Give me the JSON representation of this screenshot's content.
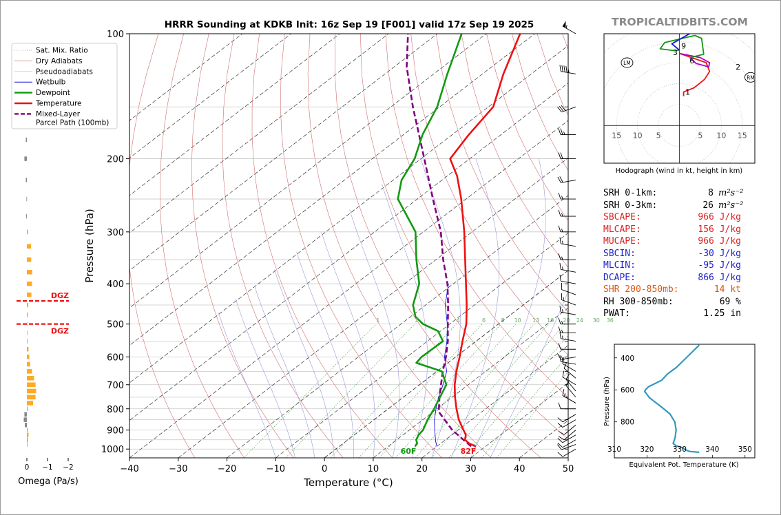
{
  "title": "HRRR Sounding at KDKB Init: 16z Sep 19 [F001] valid 17z Sep 19 2025",
  "brand": "TROPICALTIDBITS.COM",
  "colors": {
    "temperature": "#ee1111",
    "dewpoint": "#119911",
    "wetbulb": "#1111dd",
    "parcel": "#800080",
    "dry_adiabat": "#d07070",
    "pseudoadiabat": "#9a9ad8",
    "mixing": "#66aa66",
    "hodo_low": "#ee1111",
    "hodo_mid": "#aa00cc",
    "hodo_upper": "#119911",
    "hodo_top": "#1111dd",
    "theta_e": "#3399bb",
    "omega_up": "#ffaa22",
    "omega_down": "#888888",
    "dgz": "#ee1111"
  },
  "legend": [
    {
      "key": "satmix",
      "label": "Sat. Mix. Ratio"
    },
    {
      "key": "dry",
      "label": "Dry Adiabats"
    },
    {
      "key": "pseudo",
      "label": "Pseudoadiabats"
    },
    {
      "key": "wetbulb",
      "label": "Wetbulb"
    },
    {
      "key": "dewpoint",
      "label": "Dewpoint"
    },
    {
      "key": "temperature",
      "label": "Temperature"
    },
    {
      "key": "parcel",
      "label": "Mixed-Layer",
      "label2": "Parcel Path (100mb)"
    }
  ],
  "chart_data": [
    {
      "id": "skewt",
      "type": "line",
      "title": "HRRR Sounding at KDKB Init: 16z Sep 19 [F001] valid 17z Sep 19 2025",
      "xlabel": "Temperature (°C)",
      "ylabel": "Pressure (hPa)",
      "xlim": [
        -40,
        50
      ],
      "ylim": [
        1050,
        100
      ],
      "x_ticks": [
        -40,
        -30,
        -20,
        -10,
        0,
        10,
        20,
        30,
        40,
        50
      ],
      "x_tick_labels": [
        "−40",
        "−30",
        "−20",
        "−10",
        "0",
        "10",
        "20",
        "30",
        "40",
        "50"
      ],
      "y_ticks": [
        100,
        200,
        300,
        400,
        500,
        600,
        700,
        800,
        900,
        1000
      ],
      "y_tick_labels": [
        "100",
        "200",
        "300",
        "400",
        "500",
        "600",
        "700",
        "800",
        "900",
        "1000"
      ],
      "mixing_ratio_labels": [
        "1",
        "2",
        "4",
        "6",
        "8",
        "10",
        "13",
        "16",
        "20",
        "24",
        "30",
        "36"
      ],
      "mixing_ratios": [
        1,
        2,
        4,
        6,
        8,
        10,
        13,
        16,
        20,
        24,
        30,
        36
      ],
      "surface_temp_label": "82F",
      "surface_dewpoint_label": "60F",
      "series": [
        {
          "name": "Temperature",
          "points": [
            [
              985,
              28.0
            ],
            [
              970,
              25.9
            ],
            [
              950,
              24.0
            ],
            [
              925,
              22.9
            ],
            [
              900,
              21.1
            ],
            [
              850,
              17.4
            ],
            [
              800,
              14.0
            ],
            [
              750,
              10.6
            ],
            [
              700,
              7.2
            ],
            [
              650,
              4.0
            ],
            [
              600,
              0.8
            ],
            [
              550,
              -2.8
            ],
            [
              500,
              -6.6
            ],
            [
              450,
              -11.6
            ],
            [
              400,
              -17.4
            ],
            [
              350,
              -24.0
            ],
            [
              300,
              -31.6
            ],
            [
              250,
              -41.0
            ],
            [
              220,
              -48.0
            ],
            [
              200,
              -54.0
            ],
            [
              175,
              -56.6
            ],
            [
              150,
              -59.0
            ],
            [
              125,
              -65.7
            ],
            [
              100,
              -73.0
            ]
          ]
        },
        {
          "name": "Dewpoint",
          "points": [
            [
              985,
              15.5
            ],
            [
              970,
              15.2
            ],
            [
              950,
              14.0
            ],
            [
              925,
              13.2
            ],
            [
              900,
              12.8
            ],
            [
              850,
              11.0
            ],
            [
              800,
              9.4
            ],
            [
              750,
              7.5
            ],
            [
              700,
              5.5
            ],
            [
              650,
              1.0
            ],
            [
              620,
              -6.5
            ],
            [
              600,
              -7.0
            ],
            [
              550,
              -6.8
            ],
            [
              520,
              -10.5
            ],
            [
              500,
              -15.5
            ],
            [
              480,
              -19.0
            ],
            [
              450,
              -22.6
            ],
            [
              400,
              -27.0
            ],
            [
              350,
              -34.0
            ],
            [
              300,
              -41.6
            ],
            [
              250,
              -54.0
            ],
            [
              225,
              -58.3
            ],
            [
              200,
              -61.3
            ],
            [
              175,
              -66.1
            ],
            [
              150,
              -70.5
            ],
            [
              125,
              -77.2
            ],
            [
              100,
              -85.0
            ]
          ]
        },
        {
          "name": "Wetbulb",
          "points": [
            [
              985,
              20.0
            ],
            [
              960,
              18.5
            ],
            [
              925,
              16.6
            ],
            [
              900,
              15.2
            ],
            [
              850,
              12.4
            ],
            [
              800,
              9.8
            ],
            [
              750,
              7.2
            ],
            [
              700,
              4.8
            ],
            [
              650,
              2.0
            ],
            [
              600,
              -2.3
            ],
            [
              550,
              -6.0
            ],
            [
              500,
              -10.5
            ],
            [
              450,
              -16.0
            ],
            [
              400,
              -21.0
            ]
          ]
        },
        {
          "name": "Mixed-Layer Parcel Path (100mb)",
          "points": [
            [
              985,
              27.0
            ],
            [
              900,
              18.8
            ],
            [
              815,
              11.3
            ],
            [
              800,
              10.4
            ],
            [
              750,
              7.4
            ],
            [
              700,
              4.4
            ],
            [
              650,
              1.2
            ],
            [
              600,
              -2.0
            ],
            [
              550,
              -5.8
            ],
            [
              500,
              -10.4
            ],
            [
              450,
              -15.4
            ],
            [
              400,
              -21.2
            ],
            [
              350,
              -28.5
            ],
            [
              300,
              -36.4
            ],
            [
              250,
              -46.8
            ],
            [
              200,
              -59.3
            ],
            [
              150,
              -75.5
            ],
            [
              120,
              -87.5
            ],
            [
              100,
              -96.0
            ]
          ]
        }
      ]
    },
    {
      "id": "omega",
      "type": "bar",
      "xlabel": "Omega (Pa/s)",
      "xlim": [
        0.3,
        -2.0
      ],
      "x_ticks": [
        0,
        -1,
        -2
      ],
      "x_tick_labels": [
        "0",
        "−1",
        "−2"
      ],
      "dgz_label": "DGZ",
      "dgz_levels": [
        440,
        500
      ],
      "series": [
        {
          "name": "Omega",
          "points": [
            [
              180,
              0.05
            ],
            [
              200,
              0.12
            ],
            [
              225,
              0.05
            ],
            [
              250,
              0.02
            ],
            [
              275,
              0.03
            ],
            [
              300,
              -0.06
            ],
            [
              325,
              -0.2
            ],
            [
              350,
              -0.21
            ],
            [
              375,
              -0.26
            ],
            [
              400,
              -0.25
            ],
            [
              425,
              -0.22
            ],
            [
              450,
              -0.07
            ],
            [
              475,
              -0.05
            ],
            [
              500,
              -0.02
            ],
            [
              525,
              -0.03
            ],
            [
              550,
              -0.04
            ],
            [
              575,
              -0.08
            ],
            [
              600,
              -0.12
            ],
            [
              625,
              -0.16
            ],
            [
              650,
              -0.25
            ],
            [
              675,
              -0.35
            ],
            [
              700,
              -0.42
            ],
            [
              725,
              -0.45
            ],
            [
              750,
              -0.42
            ],
            [
              775,
              -0.3
            ],
            [
              800,
              -0.05
            ],
            [
              825,
              0.12
            ],
            [
              850,
              0.15
            ],
            [
              875,
              0.1
            ],
            [
              900,
              -0.05
            ],
            [
              925,
              -0.08
            ],
            [
              950,
              -0.06
            ],
            [
              975,
              -0.04
            ]
          ]
        }
      ]
    },
    {
      "id": "hodograph",
      "type": "line",
      "xlabel": "Hodograph (wind in kt, height in km)",
      "xlim": [
        -18,
        18
      ],
      "ylim": [
        -9,
        22
      ],
      "ring_labels": [
        "15",
        "10",
        "5",
        "5",
        "10",
        "15"
      ],
      "height_labels": [
        "1",
        "2",
        "3",
        "6",
        "9"
      ],
      "height_points": [
        [
          2,
          8
        ],
        [
          14,
          14
        ],
        [
          -1,
          17.5
        ],
        [
          3,
          15.5
        ],
        [
          1,
          19
        ]
      ],
      "storm_motion_labels": [
        "LM",
        "RM"
      ],
      "storm_motion_points": [
        [
          -12.5,
          15
        ],
        [
          17,
          11.5
        ]
      ],
      "series": [
        {
          "name": "0-3 km",
          "points": [
            [
              1,
              7
            ],
            [
              1,
              8
            ],
            [
              3.5,
              9
            ],
            [
              6,
              11
            ],
            [
              7.2,
              12.9
            ],
            [
              6.4,
              15
            ],
            [
              0,
              17.2
            ]
          ]
        },
        {
          "name": "3-6 km",
          "points": [
            [
              0,
              17.2
            ],
            [
              5,
              16.2
            ],
            [
              7.2,
              15
            ],
            [
              7,
              14
            ],
            [
              4,
              14.8
            ],
            [
              2.5,
              16.2
            ]
          ]
        },
        {
          "name": "6-9 km",
          "points": [
            [
              2.5,
              16.2
            ],
            [
              5.8,
              17
            ],
            [
              5.3,
              20.8
            ],
            [
              3.7,
              21.5
            ],
            [
              -3.5,
              19.8
            ],
            [
              -4.6,
              18.3
            ],
            [
              -1.5,
              17.9
            ],
            [
              0,
              18
            ]
          ]
        },
        {
          "name": "9+ km",
          "points": [
            [
              0,
              18
            ],
            [
              -1.8,
              19.5
            ],
            [
              2.6,
              22
            ]
          ]
        }
      ]
    },
    {
      "id": "theta_e",
      "type": "line",
      "xlabel": "Equivalent Pot. Temperature (K)",
      "ylabel": "Pressure (hPa)",
      "xlim": [
        310,
        353
      ],
      "ylim": [
        1025,
        315
      ],
      "x_ticks": [
        310,
        320,
        330,
        340,
        350
      ],
      "x_tick_labels": [
        "310",
        "320",
        "330",
        "340",
        "350"
      ],
      "y_ticks": [
        400,
        600,
        800
      ],
      "y_tick_labels": [
        "400",
        "600",
        "800"
      ],
      "series": [
        {
          "name": "Theta-E",
          "points": [
            [
              990,
              336
            ],
            [
              985,
              333
            ],
            [
              975,
              331.8
            ],
            [
              960,
              330.7
            ],
            [
              950,
              329
            ],
            [
              935,
              328
            ],
            [
              900,
              328.6
            ],
            [
              850,
              328.9
            ],
            [
              800,
              328.5
            ],
            [
              750,
              327
            ],
            [
              700,
              324
            ],
            [
              650,
              320.8
            ],
            [
              610,
              319.3
            ],
            [
              600,
              319.5
            ],
            [
              580,
              320.5
            ],
            [
              540,
              324.5
            ],
            [
              500,
              326.3
            ],
            [
              460,
              329
            ],
            [
              420,
              331
            ],
            [
              380,
              333
            ],
            [
              340,
              335
            ],
            [
              320,
              336
            ]
          ]
        }
      ]
    }
  ],
  "stats": [
    {
      "label": "SRH 0-1km:",
      "value": "8",
      "unit": "m²s⁻²",
      "color": "#000000"
    },
    {
      "label": "SRH 0-3km:",
      "value": "26",
      "unit": "m²s⁻²",
      "color": "#000000"
    },
    {
      "label": "SBCAPE:",
      "value": "966 J/kg",
      "unit": "",
      "color": "#dd2222"
    },
    {
      "label": "MLCAPE:",
      "value": "156 J/kg",
      "unit": "",
      "color": "#dd2222"
    },
    {
      "label": "MUCAPE:",
      "value": "966 J/kg",
      "unit": "",
      "color": "#dd2222"
    },
    {
      "label": "SBCIN:",
      "value": "-30 J/kg",
      "unit": "",
      "color": "#2222cc"
    },
    {
      "label": "MLCIN:",
      "value": "-95 J/kg",
      "unit": "",
      "color": "#2222cc"
    },
    {
      "label": "DCAPE:",
      "value": "866 J/kg",
      "unit": "",
      "color": "#2222cc"
    },
    {
      "label": "SHR 200-850mb:",
      "value": "14 kt",
      "unit": "",
      "color": "#dd5511"
    },
    {
      "label": "RH 300-850mb:",
      "value": "69 %",
      "unit": "",
      "color": "#000000"
    },
    {
      "label": "PWAT:",
      "value": "1.25 in",
      "unit": "",
      "color": "#000000"
    }
  ],
  "wind_barbs": [
    {
      "p": 100,
      "dir": 300,
      "spd": 55
    },
    {
      "p": 125,
      "dir": 280,
      "spd": 45
    },
    {
      "p": 150,
      "dir": 250,
      "spd": 30
    },
    {
      "p": 175,
      "dir": 270,
      "spd": 25
    },
    {
      "p": 200,
      "dir": 270,
      "spd": 20
    },
    {
      "p": 225,
      "dir": 260,
      "spd": 20
    },
    {
      "p": 250,
      "dir": 270,
      "spd": 15
    },
    {
      "p": 275,
      "dir": 270,
      "spd": 15
    },
    {
      "p": 300,
      "dir": 270,
      "spd": 15
    },
    {
      "p": 325,
      "dir": 280,
      "spd": 15
    },
    {
      "p": 350,
      "dir": 270,
      "spd": 15
    },
    {
      "p": 375,
      "dir": 280,
      "spd": 15
    },
    {
      "p": 400,
      "dir": 280,
      "spd": 10
    },
    {
      "p": 425,
      "dir": 290,
      "spd": 10
    },
    {
      "p": 450,
      "dir": 290,
      "spd": 15
    },
    {
      "p": 475,
      "dir": 280,
      "spd": 15
    },
    {
      "p": 500,
      "dir": 270,
      "spd": 15
    },
    {
      "p": 525,
      "dir": 270,
      "spd": 15
    },
    {
      "p": 550,
      "dir": 280,
      "spd": 15
    },
    {
      "p": 575,
      "dir": 270,
      "spd": 10
    },
    {
      "p": 600,
      "dir": 260,
      "spd": 15
    },
    {
      "p": 625,
      "dir": 280,
      "spd": 15
    },
    {
      "p": 650,
      "dir": 300,
      "spd": 10
    },
    {
      "p": 675,
      "dir": 310,
      "spd": 10
    },
    {
      "p": 700,
      "dir": 300,
      "spd": 10
    },
    {
      "p": 725,
      "dir": 320,
      "spd": 10
    },
    {
      "p": 750,
      "dir": 320,
      "spd": 10
    },
    {
      "p": 775,
      "dir": 300,
      "spd": 15
    },
    {
      "p": 800,
      "dir": 270,
      "spd": 10
    },
    {
      "p": 825,
      "dir": 240,
      "spd": 10
    },
    {
      "p": 850,
      "dir": 240,
      "spd": 10
    },
    {
      "p": 875,
      "dir": 230,
      "spd": 10
    },
    {
      "p": 900,
      "dir": 230,
      "spd": 10
    },
    {
      "p": 925,
      "dir": 240,
      "spd": 10
    },
    {
      "p": 950,
      "dir": 240,
      "spd": 10
    },
    {
      "p": 975,
      "dir": 250,
      "spd": 10
    },
    {
      "p": 1000,
      "dir": 240,
      "spd": 10
    }
  ]
}
